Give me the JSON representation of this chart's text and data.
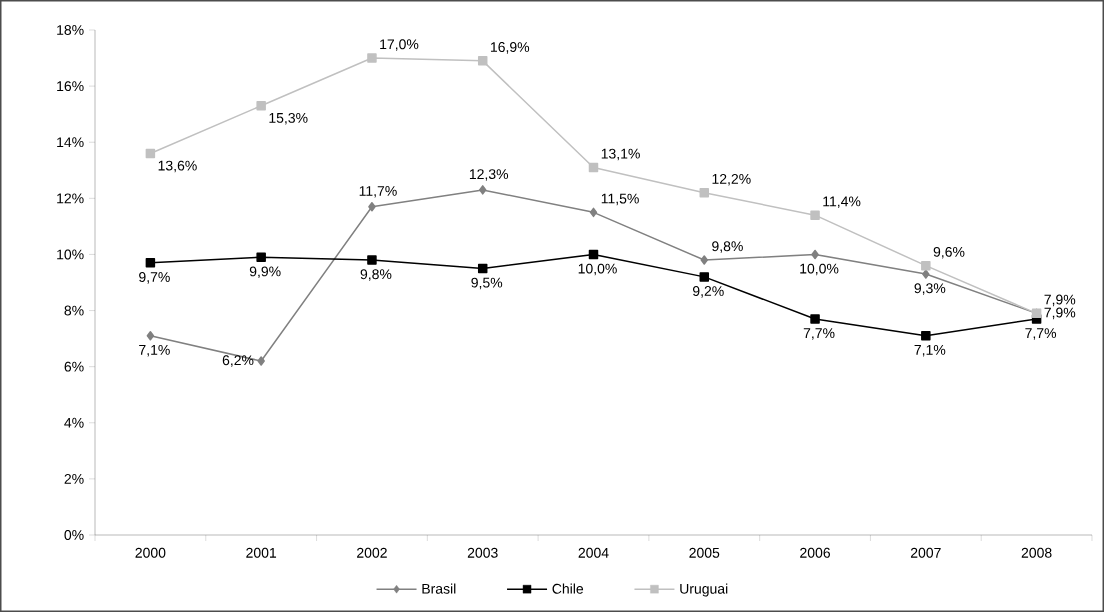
{
  "chart_data": {
    "type": "line",
    "categories": [
      "2000",
      "2001",
      "2002",
      "2003",
      "2004",
      "2005",
      "2006",
      "2007",
      "2008"
    ],
    "ylim": [
      0,
      18
    ],
    "yticks": [
      {
        "value": 0,
        "label": "0%"
      },
      {
        "value": 2,
        "label": "2%"
      },
      {
        "value": 4,
        "label": "4%"
      },
      {
        "value": 6,
        "label": "6%"
      },
      {
        "value": 8,
        "label": "8%"
      },
      {
        "value": 10,
        "label": "10%"
      },
      {
        "value": 12,
        "label": "12%"
      },
      {
        "value": 14,
        "label": "14%"
      },
      {
        "value": 16,
        "label": "16%"
      },
      {
        "value": 18,
        "label": "18%"
      }
    ],
    "series": [
      {
        "name": "Brasil",
        "color": "#808080",
        "marker": "diamond",
        "values": [
          7.1,
          6.2,
          11.7,
          12.3,
          11.5,
          9.8,
          10.0,
          9.3,
          7.9
        ],
        "value_labels": [
          "7,1%",
          "6,2%",
          "11,7%",
          "12,3%",
          "11,5%",
          "9,8%",
          "10,0%",
          "9,3%",
          "7,9%"
        ]
      },
      {
        "name": "Chile",
        "color": "#000000",
        "marker": "square",
        "values": [
          9.7,
          9.9,
          9.8,
          9.5,
          10.0,
          9.2,
          7.7,
          7.1,
          7.7
        ],
        "value_labels": [
          "9,7%",
          "9,9%",
          "9,8%",
          "9,5%",
          "10,0%",
          "9,2%",
          "7,7%",
          "7,1%",
          "7,7%"
        ]
      },
      {
        "name": "Uruguai",
        "color": "#c0c0c0",
        "marker": "square",
        "values": [
          13.6,
          15.3,
          17.0,
          16.9,
          13.1,
          12.2,
          11.4,
          9.6,
          7.9
        ],
        "value_labels": [
          "13,6%",
          "15,3%",
          "17,0%",
          "16,9%",
          "13,1%",
          "12,2%",
          "11,4%",
          "9,6%",
          "7,9%"
        ]
      }
    ],
    "grid": false,
    "legend": "bottom"
  }
}
